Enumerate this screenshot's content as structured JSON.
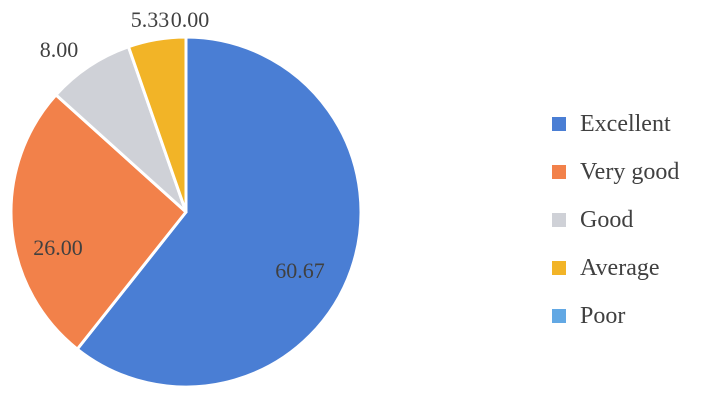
{
  "chart_data": {
    "type": "pie",
    "categories": [
      "Excellent",
      "Very good",
      "Good",
      "Average",
      "Poor"
    ],
    "values": [
      60.67,
      26.0,
      8.0,
      5.33,
      0.0
    ],
    "data_labels": [
      "60.67",
      "26.00",
      "8.00",
      "5.33",
      "0.00"
    ],
    "colors": [
      "#4a7ed4",
      "#f2814a",
      "#cfd1d7",
      "#f2b427",
      "#62a8e4"
    ],
    "legend_position": "right",
    "start_angle": "12 o'clock, clockwise"
  }
}
